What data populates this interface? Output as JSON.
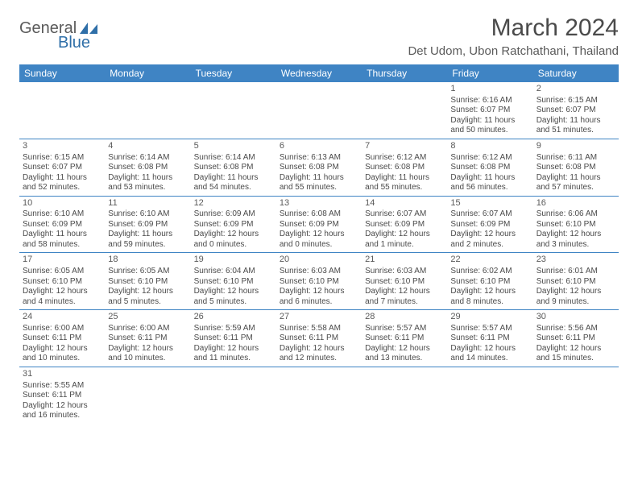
{
  "header": {
    "logo_general": "General",
    "logo_blue": "Blue",
    "month_title": "March 2024",
    "location": "Det Udom, Ubon Ratchathani, Thailand"
  },
  "colors": {
    "header_bg": "#3f84c4",
    "header_text": "#ffffff",
    "cell_border": "#3f84c4",
    "text": "#4a4a4a",
    "logo_gray": "#5a5a5a",
    "logo_blue": "#2f6fa8",
    "page_bg": "#ffffff"
  },
  "weekdays": [
    "Sunday",
    "Monday",
    "Tuesday",
    "Wednesday",
    "Thursday",
    "Friday",
    "Saturday"
  ],
  "weeks": [
    [
      null,
      null,
      null,
      null,
      null,
      {
        "n": "1",
        "sr": "6:16 AM",
        "ss": "6:07 PM",
        "dl": "11 hours and 50 minutes."
      },
      {
        "n": "2",
        "sr": "6:15 AM",
        "ss": "6:07 PM",
        "dl": "11 hours and 51 minutes."
      }
    ],
    [
      {
        "n": "3",
        "sr": "6:15 AM",
        "ss": "6:07 PM",
        "dl": "11 hours and 52 minutes."
      },
      {
        "n": "4",
        "sr": "6:14 AM",
        "ss": "6:08 PM",
        "dl": "11 hours and 53 minutes."
      },
      {
        "n": "5",
        "sr": "6:14 AM",
        "ss": "6:08 PM",
        "dl": "11 hours and 54 minutes."
      },
      {
        "n": "6",
        "sr": "6:13 AM",
        "ss": "6:08 PM",
        "dl": "11 hours and 55 minutes."
      },
      {
        "n": "7",
        "sr": "6:12 AM",
        "ss": "6:08 PM",
        "dl": "11 hours and 55 minutes."
      },
      {
        "n": "8",
        "sr": "6:12 AM",
        "ss": "6:08 PM",
        "dl": "11 hours and 56 minutes."
      },
      {
        "n": "9",
        "sr": "6:11 AM",
        "ss": "6:08 PM",
        "dl": "11 hours and 57 minutes."
      }
    ],
    [
      {
        "n": "10",
        "sr": "6:10 AM",
        "ss": "6:09 PM",
        "dl": "11 hours and 58 minutes."
      },
      {
        "n": "11",
        "sr": "6:10 AM",
        "ss": "6:09 PM",
        "dl": "11 hours and 59 minutes."
      },
      {
        "n": "12",
        "sr": "6:09 AM",
        "ss": "6:09 PM",
        "dl": "12 hours and 0 minutes."
      },
      {
        "n": "13",
        "sr": "6:08 AM",
        "ss": "6:09 PM",
        "dl": "12 hours and 0 minutes."
      },
      {
        "n": "14",
        "sr": "6:07 AM",
        "ss": "6:09 PM",
        "dl": "12 hours and 1 minute."
      },
      {
        "n": "15",
        "sr": "6:07 AM",
        "ss": "6:09 PM",
        "dl": "12 hours and 2 minutes."
      },
      {
        "n": "16",
        "sr": "6:06 AM",
        "ss": "6:10 PM",
        "dl": "12 hours and 3 minutes."
      }
    ],
    [
      {
        "n": "17",
        "sr": "6:05 AM",
        "ss": "6:10 PM",
        "dl": "12 hours and 4 minutes."
      },
      {
        "n": "18",
        "sr": "6:05 AM",
        "ss": "6:10 PM",
        "dl": "12 hours and 5 minutes."
      },
      {
        "n": "19",
        "sr": "6:04 AM",
        "ss": "6:10 PM",
        "dl": "12 hours and 5 minutes."
      },
      {
        "n": "20",
        "sr": "6:03 AM",
        "ss": "6:10 PM",
        "dl": "12 hours and 6 minutes."
      },
      {
        "n": "21",
        "sr": "6:03 AM",
        "ss": "6:10 PM",
        "dl": "12 hours and 7 minutes."
      },
      {
        "n": "22",
        "sr": "6:02 AM",
        "ss": "6:10 PM",
        "dl": "12 hours and 8 minutes."
      },
      {
        "n": "23",
        "sr": "6:01 AM",
        "ss": "6:10 PM",
        "dl": "12 hours and 9 minutes."
      }
    ],
    [
      {
        "n": "24",
        "sr": "6:00 AM",
        "ss": "6:11 PM",
        "dl": "12 hours and 10 minutes."
      },
      {
        "n": "25",
        "sr": "6:00 AM",
        "ss": "6:11 PM",
        "dl": "12 hours and 10 minutes."
      },
      {
        "n": "26",
        "sr": "5:59 AM",
        "ss": "6:11 PM",
        "dl": "12 hours and 11 minutes."
      },
      {
        "n": "27",
        "sr": "5:58 AM",
        "ss": "6:11 PM",
        "dl": "12 hours and 12 minutes."
      },
      {
        "n": "28",
        "sr": "5:57 AM",
        "ss": "6:11 PM",
        "dl": "12 hours and 13 minutes."
      },
      {
        "n": "29",
        "sr": "5:57 AM",
        "ss": "6:11 PM",
        "dl": "12 hours and 14 minutes."
      },
      {
        "n": "30",
        "sr": "5:56 AM",
        "ss": "6:11 PM",
        "dl": "12 hours and 15 minutes."
      }
    ],
    [
      {
        "n": "31",
        "sr": "5:55 AM",
        "ss": "6:11 PM",
        "dl": "12 hours and 16 minutes."
      },
      null,
      null,
      null,
      null,
      null,
      null
    ]
  ],
  "labels": {
    "sunrise_prefix": "Sunrise: ",
    "sunset_prefix": "Sunset: ",
    "daylight_prefix": "Daylight: "
  },
  "typography": {
    "month_title_fontsize": 30,
    "location_fontsize": 15,
    "weekday_fontsize": 12,
    "daynum_fontsize": 11,
    "cell_fontsize": 10,
    "logo_fontsize": 20
  }
}
